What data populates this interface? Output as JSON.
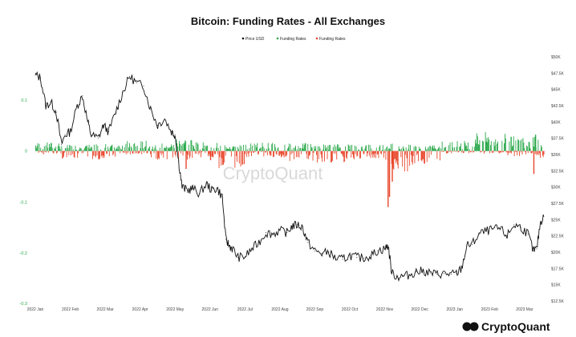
{
  "chart_data": {
    "type": "bar",
    "title": "Bitcoin: Funding Rates - All Exchanges",
    "legend": [
      {
        "label": "Price USD",
        "color": "#111111"
      },
      {
        "label": "Funding Rates",
        "color": "#2aa84a"
      },
      {
        "label": "Funding Rates",
        "color": "#e8472b"
      }
    ],
    "legend_position": "top-center",
    "grid": false,
    "left_axis": {
      "label": "",
      "ylim": [
        -0.2,
        0.1
      ],
      "ticks": [
        {
          "value": 0.1,
          "label": "0.1"
        },
        {
          "value": 0,
          "label": "0"
        },
        {
          "value": -0.1,
          "label": "-0.1"
        },
        {
          "value": -0.2,
          "label": "-0.2"
        }
      ],
      "extra_bottom_label": "-0.3"
    },
    "right_axis": {
      "label": "",
      "ylim": [
        12500,
        50000
      ],
      "tick_labels": [
        "$50K",
        "$47.5K",
        "$45K",
        "$42.5K",
        "$40K",
        "$37.5K",
        "$35K",
        "$32.5K",
        "$30K",
        "$27.5K",
        "$25K",
        "$22.5K",
        "$20K",
        "$17.5K",
        "$15K",
        "$12.5K"
      ]
    },
    "x_axis": {
      "tick_labels": [
        "2022 Jan",
        "2022 Feb",
        "2022 Mar",
        "2022 Apr",
        "2022 May",
        "2022 Jun",
        "2022 Jul",
        "2022 Aug",
        "2022 Sep",
        "2022 Oct",
        "2022 Nov",
        "2022 Dec",
        "2023 Jan",
        "2023 Feb",
        "2023 Mar"
      ]
    },
    "price_series": {
      "name": "Price USD",
      "points": [
        {
          "m": 0.0,
          "v": 47200
        },
        {
          "m": 0.15,
          "v": 46800
        },
        {
          "m": 0.3,
          "v": 42500
        },
        {
          "m": 0.45,
          "v": 43000
        },
        {
          "m": 0.6,
          "v": 41500
        },
        {
          "m": 0.75,
          "v": 36500
        },
        {
          "m": 0.85,
          "v": 38000
        },
        {
          "m": 1.0,
          "v": 38500
        },
        {
          "m": 1.2,
          "v": 42500
        },
        {
          "m": 1.35,
          "v": 44000
        },
        {
          "m": 1.5,
          "v": 40000
        },
        {
          "m": 1.6,
          "v": 38000
        },
        {
          "m": 1.8,
          "v": 37500
        },
        {
          "m": 1.95,
          "v": 39500
        },
        {
          "m": 2.1,
          "v": 38500
        },
        {
          "m": 2.3,
          "v": 41500
        },
        {
          "m": 2.5,
          "v": 44500
        },
        {
          "m": 2.7,
          "v": 47000
        },
        {
          "m": 2.9,
          "v": 46000
        },
        {
          "m": 3.1,
          "v": 45500
        },
        {
          "m": 3.3,
          "v": 42000
        },
        {
          "m": 3.5,
          "v": 39500
        },
        {
          "m": 3.7,
          "v": 40500
        },
        {
          "m": 3.9,
          "v": 38500
        },
        {
          "m": 4.0,
          "v": 38000
        },
        {
          "m": 4.1,
          "v": 34000
        },
        {
          "m": 4.2,
          "v": 30000
        },
        {
          "m": 4.35,
          "v": 29500
        },
        {
          "m": 4.5,
          "v": 29800
        },
        {
          "m": 4.7,
          "v": 29000
        },
        {
          "m": 4.9,
          "v": 30500
        },
        {
          "m": 5.05,
          "v": 29500
        },
        {
          "m": 5.2,
          "v": 29800
        },
        {
          "m": 5.35,
          "v": 28500
        },
        {
          "m": 5.45,
          "v": 22000
        },
        {
          "m": 5.55,
          "v": 21000
        },
        {
          "m": 5.65,
          "v": 20500
        },
        {
          "m": 5.8,
          "v": 19200
        },
        {
          "m": 6.0,
          "v": 19300
        },
        {
          "m": 6.2,
          "v": 20500
        },
        {
          "m": 6.4,
          "v": 21500
        },
        {
          "m": 6.6,
          "v": 23000
        },
        {
          "m": 6.8,
          "v": 22800
        },
        {
          "m": 7.0,
          "v": 23300
        },
        {
          "m": 7.2,
          "v": 23000
        },
        {
          "m": 7.35,
          "v": 24000
        },
        {
          "m": 7.5,
          "v": 24200
        },
        {
          "m": 7.65,
          "v": 23800
        },
        {
          "m": 7.8,
          "v": 21500
        },
        {
          "m": 8.0,
          "v": 20200
        },
        {
          "m": 8.2,
          "v": 19800
        },
        {
          "m": 8.4,
          "v": 20000
        },
        {
          "m": 8.6,
          "v": 19000
        },
        {
          "m": 8.8,
          "v": 18900
        },
        {
          "m": 9.0,
          "v": 19500
        },
        {
          "m": 9.2,
          "v": 19200
        },
        {
          "m": 9.4,
          "v": 19100
        },
        {
          "m": 9.6,
          "v": 19500
        },
        {
          "m": 9.8,
          "v": 20200
        },
        {
          "m": 10.0,
          "v": 20500
        },
        {
          "m": 10.1,
          "v": 21000
        },
        {
          "m": 10.2,
          "v": 16800
        },
        {
          "m": 10.35,
          "v": 16200
        },
        {
          "m": 10.5,
          "v": 16300
        },
        {
          "m": 10.7,
          "v": 16500
        },
        {
          "m": 10.9,
          "v": 17000
        },
        {
          "m": 11.1,
          "v": 17100
        },
        {
          "m": 11.3,
          "v": 16800
        },
        {
          "m": 11.5,
          "v": 16600
        },
        {
          "m": 11.7,
          "v": 16700
        },
        {
          "m": 11.9,
          "v": 16600
        },
        {
          "m": 12.05,
          "v": 16700
        },
        {
          "m": 12.2,
          "v": 17500
        },
        {
          "m": 12.35,
          "v": 21000
        },
        {
          "m": 12.5,
          "v": 21200
        },
        {
          "m": 12.7,
          "v": 22800
        },
        {
          "m": 12.9,
          "v": 23200
        },
        {
          "m": 13.1,
          "v": 23500
        },
        {
          "m": 13.3,
          "v": 23600
        },
        {
          "m": 13.5,
          "v": 22500
        },
        {
          "m": 13.7,
          "v": 24200
        },
        {
          "m": 13.9,
          "v": 23800
        },
        {
          "m": 14.1,
          "v": 22800
        },
        {
          "m": 14.25,
          "v": 20200
        },
        {
          "m": 14.35,
          "v": 20500
        },
        {
          "m": 14.45,
          "v": 24500
        },
        {
          "m": 14.55,
          "v": 25500
        }
      ]
    },
    "funding_segments": [
      {
        "m0": 0.0,
        "m1": 0.7,
        "pos": 0.01,
        "neg": -0.004
      },
      {
        "m0": 0.7,
        "m1": 1.5,
        "pos": 0.007,
        "neg": -0.009
      },
      {
        "m0": 1.5,
        "m1": 2.5,
        "pos": 0.008,
        "neg": -0.01
      },
      {
        "m0": 2.5,
        "m1": 3.2,
        "pos": 0.012,
        "neg": -0.004
      },
      {
        "m0": 3.2,
        "m1": 4.0,
        "pos": 0.009,
        "neg": -0.01
      },
      {
        "m0": 4.0,
        "m1": 4.5,
        "pos": 0.015,
        "neg": -0.012
      },
      {
        "m0": 4.5,
        "m1": 5.2,
        "pos": 0.01,
        "neg": -0.008
      },
      {
        "m0": 5.2,
        "m1": 6.0,
        "pos": 0.008,
        "neg": -0.02
      },
      {
        "m0": 6.0,
        "m1": 7.0,
        "pos": 0.01,
        "neg": -0.007
      },
      {
        "m0": 7.0,
        "m1": 8.0,
        "pos": 0.009,
        "neg": -0.012
      },
      {
        "m0": 8.0,
        "m1": 9.0,
        "pos": 0.008,
        "neg": -0.014
      },
      {
        "m0": 9.0,
        "m1": 10.0,
        "pos": 0.008,
        "neg": -0.01
      },
      {
        "m0": 10.0,
        "m1": 10.8,
        "pos": 0.009,
        "neg": -0.025
      },
      {
        "m0": 10.8,
        "m1": 11.6,
        "pos": 0.007,
        "neg": -0.015
      },
      {
        "m0": 11.6,
        "m1": 12.5,
        "pos": 0.012,
        "neg": -0.003
      },
      {
        "m0": 12.5,
        "m1": 13.5,
        "pos": 0.022,
        "neg": -0.003
      },
      {
        "m0": 13.5,
        "m1": 14.2,
        "pos": 0.018,
        "neg": -0.006
      },
      {
        "m0": 14.2,
        "m1": 14.55,
        "pos": 0.02,
        "neg": -0.008
      }
    ],
    "funding_spikes": [
      {
        "m": 4.25,
        "v": 0.012
      },
      {
        "m": 4.3,
        "v": -0.035
      },
      {
        "m": 5.0,
        "v": -0.018
      },
      {
        "m": 10.08,
        "v": -0.11
      },
      {
        "m": 10.12,
        "v": -0.09
      },
      {
        "m": 10.2,
        "v": -0.06
      },
      {
        "m": 13.6,
        "v": 0.028
      },
      {
        "m": 14.25,
        "v": -0.045
      },
      {
        "m": 14.3,
        "v": 0.032
      }
    ]
  },
  "watermark": "CryptoQuant",
  "logo": {
    "text": "CryptoQuant"
  }
}
